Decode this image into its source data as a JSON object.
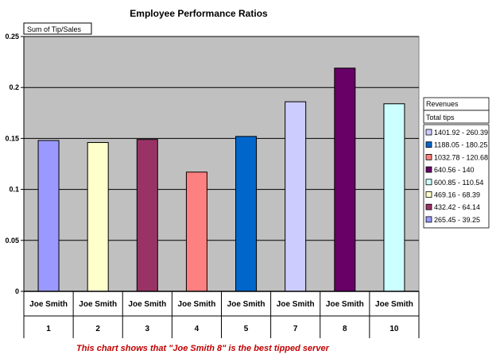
{
  "chart_data": {
    "type": "bar",
    "title": "Employee Performance Ratios",
    "field_button": "Sum of Tip/Sales",
    "ylim": [
      0,
      0.25
    ],
    "y_ticks": [
      "0",
      "0.05",
      "0.1",
      "0.15",
      "0.2",
      "0.25"
    ],
    "y_tick_values": [
      0,
      0.05,
      0.1,
      0.15,
      0.2,
      0.25
    ],
    "grid": true,
    "categories": [
      {
        "name": "Joe Smith",
        "id": "1"
      },
      {
        "name": "Joe Smith",
        "id": "2"
      },
      {
        "name": "Joe Smith",
        "id": "3"
      },
      {
        "name": "Joe Smith",
        "id": "4"
      },
      {
        "name": "Joe Smith",
        "id": "5"
      },
      {
        "name": "Joe Smith",
        "id": "7"
      },
      {
        "name": "Joe Smith",
        "id": "8"
      },
      {
        "name": "Joe Smith",
        "id": "10"
      }
    ],
    "values": [
      0.148,
      0.146,
      0.149,
      0.117,
      0.152,
      0.186,
      0.219,
      0.184
    ],
    "bar_colors": [
      "#9999ff",
      "#ffffcc",
      "#993366",
      "#ff8080",
      "#0066cc",
      "#ccccff",
      "#660066",
      "#ccffff"
    ],
    "legend": {
      "placement": "right",
      "header1": "Revenues",
      "header2": "Total tips",
      "entries": [
        {
          "label": "1401.92 - 260.39",
          "color": "#ccccff"
        },
        {
          "label": "1188.05 - 180.25",
          "color": "#0066cc"
        },
        {
          "label": "1032.78 - 120.68",
          "color": "#ff8080"
        },
        {
          "label": "640.56 - 140",
          "color": "#660066"
        },
        {
          "label": "600.85 - 110.54",
          "color": "#ccffff"
        },
        {
          "label": "469.16 - 68.39",
          "color": "#ffffcc"
        },
        {
          "label": "432.42 - 64.14",
          "color": "#993366"
        },
        {
          "label": "265.45 - 39.25",
          "color": "#9999ff"
        }
      ]
    },
    "plot_bg": "#c0c0c0"
  },
  "caption": "This chart shows that \"Joe Smith 8\" is the best tipped server"
}
